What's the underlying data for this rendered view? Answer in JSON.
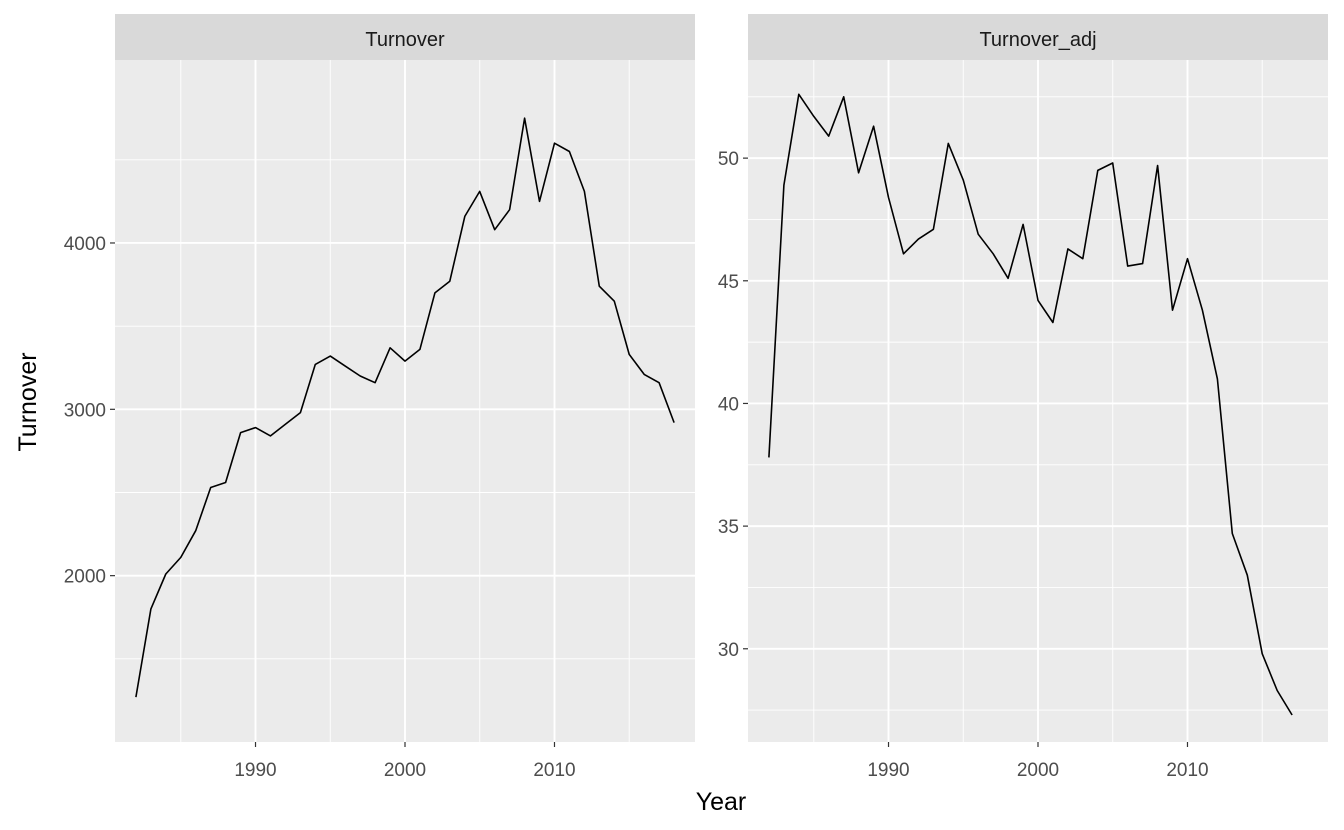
{
  "chart_data": {
    "type": "line",
    "xlabel": "Year",
    "ylabel": "Turnover",
    "grid": true,
    "line_color": "#000000",
    "panel_bg": "#ebebeb",
    "strip_bg": "#d9d9d9",
    "panels": [
      {
        "strip": "Turnover",
        "xlim": [
          1980.6,
          2019.4
        ],
        "ylim": [
          1000,
          5100
        ],
        "xticks": [
          1990,
          2000,
          2010
        ],
        "yticks": [
          2000,
          3000,
          4000
        ],
        "series": [
          {
            "x": [
              1982,
              1983,
              1984,
              1985,
              1986,
              1987,
              1988,
              1989,
              1990,
              1991,
              1992,
              1993,
              1994,
              1995,
              1996,
              1997,
              1998,
              1999,
              2000,
              2001,
              2002,
              2003,
              2004,
              2005,
              2006,
              2007,
              2008,
              2009,
              2010,
              2011,
              2012,
              2013,
              2014,
              2015,
              2016,
              2017,
              2018
            ],
            "values": [
              1270,
              1800,
              2010,
              2110,
              2270,
              2530,
              2560,
              2860,
              2890,
              2840,
              2910,
              2980,
              3270,
              3320,
              3260,
              3200,
              3160,
              3370,
              3290,
              3360,
              3700,
              3770,
              4160,
              4310,
              4080,
              4200,
              4750,
              4250,
              4600,
              4550,
              4310,
              3740,
              3650,
              3330,
              3210,
              3160,
              2920
            ]
          }
        ]
      },
      {
        "strip": "Turnover_adj",
        "xlim": [
          1980.6,
          2019.4
        ],
        "ylim": [
          26.2,
          54.0
        ],
        "xticks": [
          1990,
          2000,
          2010
        ],
        "yticks": [
          30,
          35,
          40,
          45,
          50
        ],
        "series": [
          {
            "x": [
              1982,
              1983,
              1984,
              1985,
              1986,
              1987,
              1988,
              1989,
              1990,
              1991,
              1992,
              1993,
              1994,
              1995,
              1996,
              1997,
              1998,
              1999,
              2000,
              2001,
              2002,
              2003,
              2004,
              2005,
              2006,
              2007,
              2008,
              2009,
              2010,
              2011,
              2012,
              2013,
              2014,
              2015,
              2016,
              2017
            ],
            "values": [
              37.8,
              48.9,
              52.6,
              51.7,
              50.9,
              52.5,
              49.4,
              51.3,
              48.4,
              46.1,
              46.7,
              47.1,
              50.6,
              49.1,
              46.9,
              46.1,
              45.1,
              47.3,
              44.2,
              43.3,
              46.3,
              45.9,
              49.5,
              49.8,
              45.6,
              45.7,
              49.7,
              43.8,
              45.9,
              43.8,
              41.0,
              34.7,
              33.0,
              29.8,
              28.3,
              27.3
            ]
          }
        ]
      }
    ]
  }
}
